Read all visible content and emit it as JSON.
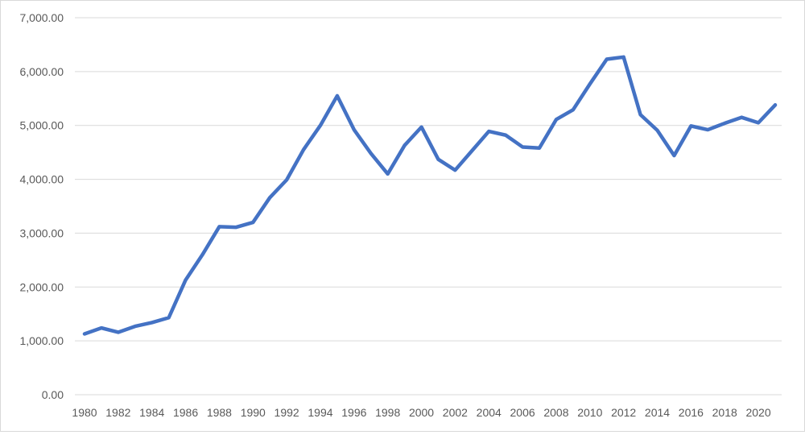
{
  "chart_data": {
    "type": "line",
    "title": "",
    "xlabel": "",
    "ylabel": "",
    "xlim": [
      1980,
      2021
    ],
    "ylim": [
      0,
      7000
    ],
    "y_ticks": [
      0,
      1000,
      2000,
      3000,
      4000,
      5000,
      6000,
      7000
    ],
    "y_tick_labels": [
      "0.00",
      "1,000.00",
      "2,000.00",
      "3,000.00",
      "4,000.00",
      "5,000.00",
      "6,000.00",
      "7,000.00"
    ],
    "x_ticks": [
      "1980",
      "1982",
      "1984",
      "1986",
      "1988",
      "1990",
      "1992",
      "1994",
      "1996",
      "1998",
      "2000",
      "2002",
      "2004",
      "2006",
      "2008",
      "2010",
      "2012",
      "2014",
      "2016",
      "2018",
      "2020"
    ],
    "grid": true,
    "legend": "none",
    "colors": {
      "line": "#4472c4",
      "grid": "#d9d9d9",
      "text": "#595959"
    },
    "series": [
      {
        "x": [
          1980,
          1981,
          1982,
          1983,
          1984,
          1985,
          1986,
          1987,
          1988,
          1989,
          1990,
          1991,
          1992,
          1993,
          1994,
          1995,
          1996,
          1997,
          1998,
          1999,
          2000,
          2001,
          2002,
          2003,
          2004,
          2005,
          2006,
          2007,
          2008,
          2009,
          2010,
          2011,
          2012,
          2013,
          2014,
          2015,
          2016,
          2017,
          2018,
          2019,
          2020,
          2021
        ],
        "values": [
          1130,
          1240,
          1160,
          1270,
          1340,
          1430,
          2130,
          2600,
          3120,
          3110,
          3200,
          3660,
          3990,
          4550,
          5000,
          5550,
          4920,
          4480,
          4100,
          4630,
          4970,
          4370,
          4170,
          4530,
          4890,
          4820,
          4600,
          4580,
          5110,
          5290,
          5770,
          6230,
          6270,
          5200,
          4910,
          4440,
          4990,
          4920,
          5040,
          5150,
          5050,
          5380
        ]
      }
    ]
  }
}
